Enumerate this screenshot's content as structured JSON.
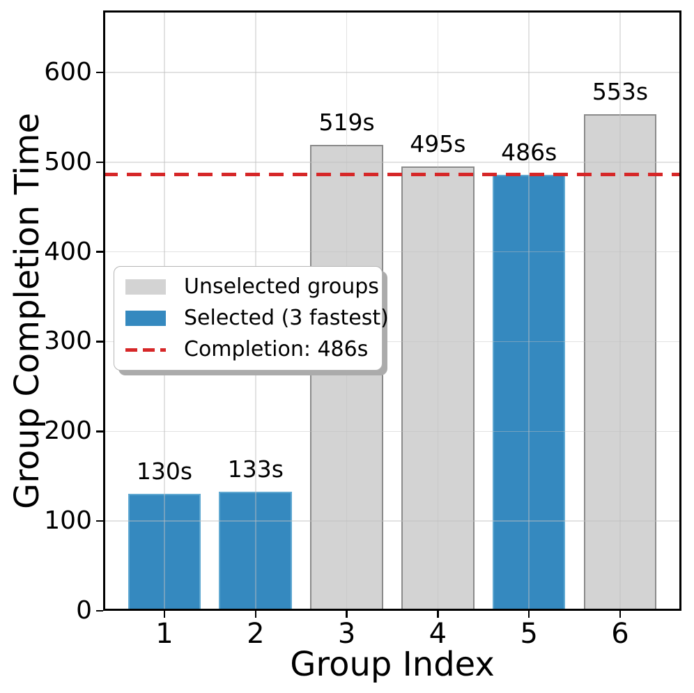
{
  "chart_data": {
    "type": "bar",
    "title": "",
    "xlabel": "Group Index",
    "ylabel": "Group Completion Time",
    "categories": [
      "1",
      "2",
      "3",
      "4",
      "5",
      "6"
    ],
    "values": [
      130,
      133,
      519,
      495,
      486,
      553
    ],
    "bar_labels": [
      "130s",
      "133s",
      "519s",
      "495s",
      "486s",
      "553s"
    ],
    "selected_mask": [
      true,
      true,
      false,
      false,
      true,
      false
    ],
    "ylim": [
      0,
      669
    ],
    "yticks": [
      0,
      100,
      200,
      300,
      400,
      500,
      600
    ],
    "grid": true,
    "reference_line": {
      "value": 486,
      "style": "dashed",
      "color": "#d62728",
      "label": "Completion: 486s"
    },
    "colors": {
      "selected": "#3589bf",
      "selected_edge": "#5fa8d1",
      "unselected": "#d3d3d3",
      "unselected_edge": "#8a8a8a",
      "reference": "#d62728",
      "grid": "#bebebe",
      "spine": "#000000"
    },
    "legend": {
      "position": "center-left",
      "items": [
        {
          "swatch": "unselected",
          "label": "Unselected groups"
        },
        {
          "swatch": "selected",
          "label": "Selected (3 fastest)"
        },
        {
          "swatch": "dashed-line",
          "label": "Completion: 486s"
        }
      ]
    }
  }
}
